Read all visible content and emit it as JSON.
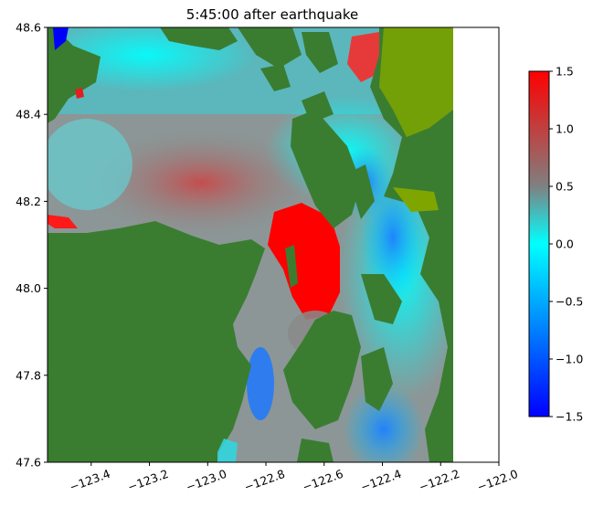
{
  "figure": {
    "title": "5:45:00 after earthquake"
  },
  "map": {
    "type": "tsunami-surface-elevation",
    "xlim": [
      -123.55,
      -122.0
    ],
    "ylim": [
      47.6,
      48.6
    ],
    "x_ticks": [
      -123.4,
      -123.2,
      -123.0,
      -122.8,
      -122.6,
      -122.4,
      -122.2,
      -122.0
    ],
    "x_tick_labels": [
      "−123.4",
      "−123.2",
      "−123.0",
      "−122.8",
      "−122.6",
      "−122.4",
      "−122.2",
      "−122.0"
    ],
    "y_ticks": [
      47.6,
      47.8,
      48.0,
      48.2,
      48.4,
      48.6
    ],
    "y_tick_labels": [
      "47.6",
      "47.8",
      "48.0",
      "48.2",
      "48.4",
      "48.6"
    ],
    "data_extent_lon": [
      -123.55,
      -122.15
    ],
    "land_color": "#3a7d31",
    "shallow_land_color": "#7fa600"
  },
  "colorbar": {
    "range": [
      -1.5,
      1.5
    ],
    "ticks": [
      1.5,
      1.0,
      0.5,
      0.0,
      -0.5,
      -1.0,
      -1.5
    ],
    "tick_labels": [
      "1.5",
      "1.0",
      "0.5",
      "0.0",
      "−0.5",
      "−1.0",
      "−1.5"
    ],
    "colors": [
      "#ff0000",
      "#808080",
      "#00ffff",
      "#0000ff"
    ]
  }
}
